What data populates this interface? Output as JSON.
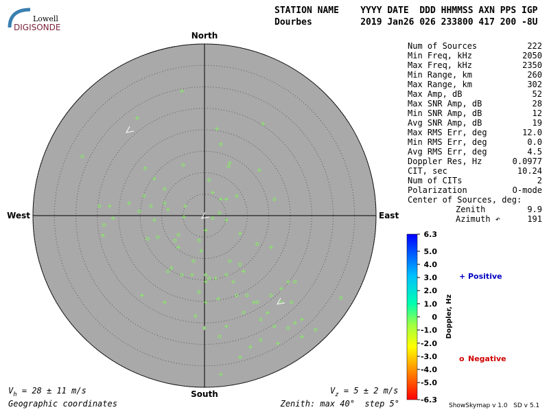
{
  "logo": {
    "top": "Lowell",
    "bottom": "DIGISONDE"
  },
  "header": {
    "line1": "STATION NAME    YYYY DATE  DDD HHMMSS AXN PPS IGP",
    "line2": "Dourbes         2019 Jan26 026 233800 417 200 -8U"
  },
  "stats": {
    "rows": [
      [
        "Num of Sources",
        "222"
      ],
      [
        "Min Freq, kHz",
        "2050"
      ],
      [
        "Max Freq, kHz",
        "2350"
      ],
      [
        "Min Range, km",
        "260"
      ],
      [
        "Max Range, km",
        "302"
      ],
      [
        "Max Amp, dB",
        "52"
      ],
      [
        "Max SNR Amp, dB",
        "28"
      ],
      [
        "Min SNR Amp, dB",
        "12"
      ],
      [
        "Avg SNR Amp, dB",
        "19"
      ],
      [
        "Max RMS Err, deg",
        "12.0"
      ],
      [
        "Min RMS Err, deg",
        "0.0"
      ],
      [
        "Avg RMS Err, deg",
        "4.5"
      ],
      [
        "Doppler Res, Hz",
        "0.0977"
      ],
      [
        "CIT, sec",
        "10.24"
      ],
      [
        "Num of CITs",
        "2"
      ],
      [
        "Polarization",
        "O-mode"
      ]
    ],
    "center_title": "Center of Sources, deg:",
    "center_rows": [
      [
        "Zenith",
        "9.9"
      ],
      [
        "Azimuth ↶",
        "191"
      ]
    ]
  },
  "footer": {
    "vh_symbol": "V",
    "vh_sub": "h",
    "vh_text": " = 28 ± 11 m/s",
    "vz_symbol": "V",
    "vz_sub": "z",
    "vz_text": " = 5 ± 2 m/s",
    "coords": "Geographic coordinates",
    "zenith": "Zenith: max 40°  step 5°",
    "version": "ShowSkymap v 1.0   SD v 5.1"
  },
  "chart_data": {
    "type": "polar-scatter",
    "directions": {
      "north": "North",
      "south": "South",
      "east": "East",
      "west": "West"
    },
    "rlim": [
      0,
      40
    ],
    "rticks": [
      5,
      10,
      15,
      20,
      25,
      30,
      35,
      40
    ],
    "point_color": "#84f060",
    "series": [
      {
        "name": "Positive",
        "marker": "+",
        "color": "#0000c0",
        "x": [
          -5.3,
          -15.7,
          2.9,
          13.6,
          -11.7,
          5.9,
          12.8,
          7.5,
          -9.3,
          1.9,
          -4.8,
          3.8,
          5.1,
          -0.8,
          -2.9,
          0.3,
          2.6,
          6.7,
          0.3,
          3.2,
          11.5,
          14.7,
          21.1,
          22.7,
          10.7,
          8.3,
          3.8,
          0.0,
          -9.3,
          -14.6,
          -23.7,
          -21.3,
          -7.7,
          -2.1,
          5.1,
          17.9,
          -6.1,
          -11.7,
          8.3,
          9.1,
          15.5,
          -4.5,
          -8.5,
          0.3,
          5.1,
          19.5,
          17.1,
          22.7,
          -22.1,
          -17.6
        ],
        "y": [
          29.0,
          22.7,
          20.2,
          21.4,
          8.6,
          12.3,
          10.6,
          4.6,
          2.9,
          5.4,
          -0.3,
          3.8,
          -1.0,
          -8.2,
          -13.8,
          -15.4,
          -14.6,
          -15.4,
          -20.2,
          -19.4,
          -20.2,
          -22.6,
          -25.0,
          -24.2,
          -30.6,
          -33.0,
          -37.0,
          -26.2,
          -20.2,
          -18.6,
          -4.6,
          -0.6,
          -12.2,
          -23.4,
          -25.8,
          -17.0,
          -7.4,
          -1.0,
          -4.2,
          -13.0,
          -7.4,
          2.2,
          1.4,
          -3.4,
          3.8,
          -15.4,
          -29.8,
          -28.2,
          2.2,
          2.9
        ]
      },
      {
        "name": "Negative",
        "marker": "o",
        "color": "#d00000",
        "x": [
          -28.5,
          -13.8,
          -5.0,
          3.8,
          5.6,
          16.3,
          -24.5,
          -23.4,
          -15.2,
          -12.5,
          -9.3,
          -6.9,
          -1.3,
          -2.6,
          -5.3,
          -8.5,
          -1.3,
          1.1,
          5.1,
          7.5,
          9.1,
          13.1,
          16.3,
          19.5,
          25.9,
          13.1,
          3.5,
          0.3,
          1.9,
          3.5,
          -10.9,
          -13.3,
          -6.1,
          9.9,
          12.3,
          15.5,
          17.9,
          20.3,
          5.9,
          8.3,
          1.1,
          12.3,
          21.1,
          31.8,
          -14.1
        ],
        "y": [
          13.8,
          11.0,
          11.8,
          16.6,
          11.5,
          3.8,
          2.2,
          -2.2,
          1.0,
          2.2,
          6.2,
          -5.8,
          -5.8,
          -10.6,
          -13.8,
          -13.0,
          -17.8,
          -14.6,
          -13.8,
          -18.6,
          -22.6,
          -24.2,
          -25.8,
          -26.2,
          -26.6,
          -29.0,
          -28.2,
          -13.8,
          -0.6,
          0.6,
          -5.0,
          -5.4,
          -4.5,
          -18.6,
          -20.2,
          -18.6,
          -20.2,
          -20.2,
          -10.6,
          -11.4,
          8.3,
          -6.6,
          -15.4,
          -19.2,
          4.6
        ]
      }
    ],
    "colorbar": {
      "label": "Doppler, Hz",
      "lim": [
        -6.3,
        6.3
      ],
      "ticks": [
        6.3,
        {
          "value": 5,
          "label": "5.0"
        },
        {
          "value": 4,
          "label": "4.0"
        },
        {
          "value": 3,
          "label": "3.0"
        },
        {
          "value": 2,
          "label": "2.0"
        },
        {
          "value": 1,
          "label": "1.0"
        },
        0,
        {
          "value": -1,
          "label": "-1.0"
        },
        {
          "value": -2,
          "label": "-2.0"
        },
        {
          "value": -3,
          "label": "-3.0"
        },
        {
          "value": -4,
          "label": "-4.0"
        },
        {
          "value": -5,
          "label": "-5.0"
        },
        -6.3
      ]
    }
  }
}
